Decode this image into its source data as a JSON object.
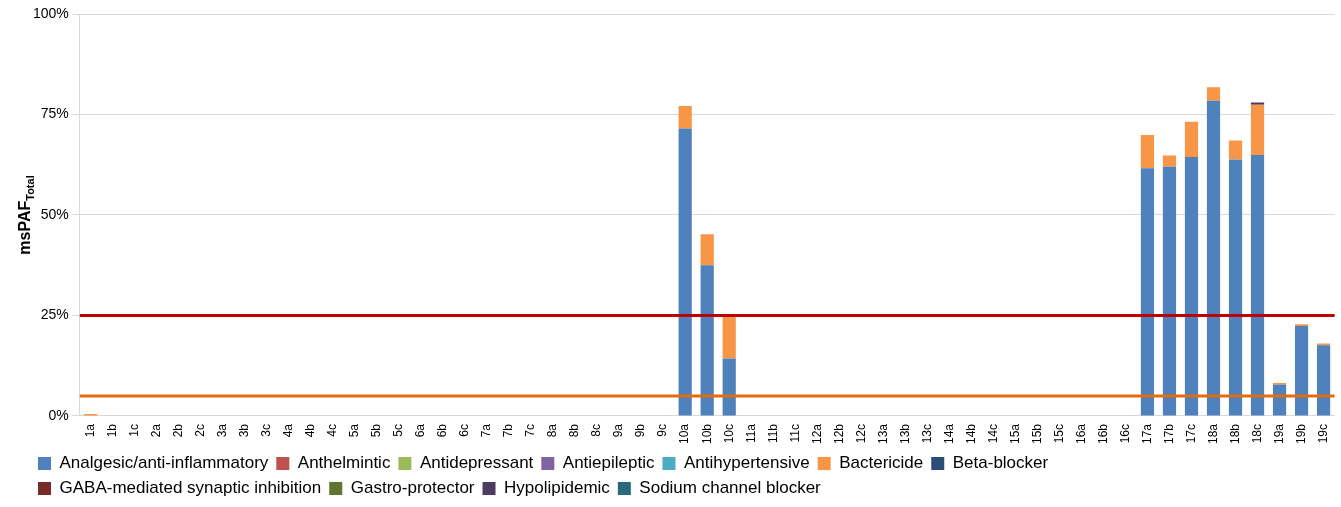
{
  "chart_data": {
    "type": "bar",
    "stacked": true,
    "ylabel": "msPAF$_{Total}$",
    "categories": [
      "1a",
      "1b",
      "1c",
      "2a",
      "2b",
      "2c",
      "3a",
      "3b",
      "3c",
      "4a",
      "4b",
      "4c",
      "5a",
      "5b",
      "5c",
      "6a",
      "6b",
      "6c",
      "7a",
      "7b",
      "7c",
      "8a",
      "8b",
      "8c",
      "9a",
      "9b",
      "9c",
      "10a",
      "10b",
      "10c",
      "11a",
      "11b",
      "11c",
      "12a",
      "12b",
      "12c",
      "13a",
      "13b",
      "13c",
      "14a",
      "14b",
      "14c",
      "15a",
      "15b",
      "15c",
      "16a",
      "16b",
      "16c",
      "17a",
      "17b",
      "17c",
      "18a",
      "18b",
      "18c",
      "19a",
      "19b",
      "19c"
    ],
    "series": [
      {
        "name": "Analgesic/anti-inflammatory",
        "color": "#4f81bd",
        "values": [
          0,
          0,
          0,
          0,
          0,
          0,
          0,
          0,
          0,
          0,
          0,
          0,
          0,
          0,
          0,
          0,
          0,
          0,
          0,
          0,
          0,
          0,
          0,
          0,
          0,
          0,
          0,
          71.5,
          37.5,
          14.3,
          0,
          0,
          0,
          0,
          0,
          0,
          0,
          0,
          0,
          0,
          0,
          0,
          0,
          0,
          0,
          0,
          0,
          0,
          61.6,
          62.0,
          64.4,
          78.4,
          63.8,
          64.9,
          7.8,
          22.4,
          17.6
        ]
      },
      {
        "name": "Anthelmintic",
        "color": "#c0504d",
        "values": [
          0,
          0,
          0,
          0,
          0,
          0,
          0,
          0,
          0,
          0,
          0,
          0,
          0,
          0,
          0,
          0,
          0,
          0,
          0,
          0,
          0,
          0,
          0,
          0,
          0,
          0,
          0,
          0,
          0,
          0,
          0,
          0,
          0,
          0,
          0,
          0,
          0,
          0,
          0,
          0,
          0,
          0,
          0,
          0,
          0,
          0,
          0,
          0,
          0,
          0,
          0,
          0,
          0,
          0,
          0,
          0,
          0
        ]
      },
      {
        "name": "Antidepressant",
        "color": "#9bbb59",
        "values": [
          0,
          0,
          0,
          0,
          0,
          0,
          0,
          0,
          0,
          0,
          0,
          0,
          0,
          0,
          0,
          0,
          0,
          0,
          0,
          0,
          0,
          0,
          0,
          0,
          0,
          0,
          0,
          0,
          0,
          0,
          0,
          0,
          0,
          0,
          0,
          0,
          0,
          0,
          0,
          0,
          0,
          0,
          0,
          0,
          0,
          0,
          0,
          0,
          0,
          0,
          0,
          0,
          0,
          0,
          0,
          0,
          0
        ]
      },
      {
        "name": "Antiepileptic",
        "color": "#8064a2",
        "values": [
          0,
          0,
          0,
          0,
          0,
          0,
          0,
          0,
          0,
          0,
          0,
          0,
          0,
          0,
          0,
          0,
          0,
          0,
          0,
          0,
          0,
          0,
          0,
          0,
          0,
          0,
          0,
          0,
          0,
          0,
          0,
          0,
          0,
          0,
          0,
          0,
          0,
          0,
          0,
          0,
          0,
          0,
          0,
          0,
          0,
          0,
          0,
          0,
          0,
          0,
          0,
          0,
          0,
          0,
          0,
          0,
          0
        ]
      },
      {
        "name": "Antihypertensive",
        "color": "#4bacc6",
        "values": [
          0,
          0,
          0,
          0,
          0,
          0,
          0,
          0,
          0,
          0,
          0,
          0,
          0,
          0,
          0,
          0,
          0,
          0,
          0,
          0,
          0,
          0,
          0,
          0,
          0,
          0,
          0,
          0,
          0,
          0,
          0,
          0,
          0,
          0,
          0,
          0,
          0,
          0,
          0,
          0,
          0,
          0,
          0,
          0,
          0,
          0,
          0,
          0,
          0,
          0,
          0,
          0,
          0,
          0,
          0,
          0,
          0
        ]
      },
      {
        "name": "Bactericide",
        "color": "#f79646",
        "values": [
          0.5,
          0,
          0,
          0,
          0,
          0,
          0,
          0,
          0,
          0,
          0,
          0,
          0,
          0,
          0,
          0,
          0,
          0,
          0,
          0,
          0,
          0,
          0,
          0,
          0,
          0,
          0,
          5.6,
          7.7,
          10.3,
          0,
          0,
          0,
          0,
          0,
          0,
          0,
          0,
          0,
          0,
          0,
          0,
          0,
          0,
          0,
          0,
          0,
          0,
          8.3,
          2.8,
          8.8,
          3.4,
          4.7,
          12.5,
          0.4,
          0.4,
          0.4
        ]
      },
      {
        "name": "Beta-blocker",
        "color": "#2c4d75",
        "values": [
          0,
          0,
          0,
          0,
          0,
          0,
          0,
          0,
          0,
          0,
          0,
          0,
          0,
          0,
          0,
          0,
          0,
          0,
          0,
          0,
          0,
          0,
          0,
          0,
          0,
          0,
          0,
          0,
          0,
          0,
          0,
          0,
          0,
          0,
          0,
          0,
          0,
          0,
          0,
          0,
          0,
          0,
          0,
          0,
          0,
          0,
          0,
          0,
          0,
          0,
          0,
          0,
          0,
          0,
          0,
          0,
          0
        ]
      },
      {
        "name": "GABA-mediated synaptic inhibition",
        "color": "#772c2a",
        "values": [
          0,
          0,
          0,
          0,
          0,
          0,
          0,
          0,
          0,
          0,
          0,
          0,
          0,
          0,
          0,
          0,
          0,
          0,
          0,
          0,
          0,
          0,
          0,
          0,
          0,
          0,
          0,
          0,
          0,
          0,
          0,
          0,
          0,
          0,
          0,
          0,
          0,
          0,
          0,
          0,
          0,
          0,
          0,
          0,
          0,
          0,
          0,
          0,
          0,
          0,
          0,
          0,
          0,
          0,
          0,
          0,
          0
        ]
      },
      {
        "name": "Gastro-protector",
        "color": "#5f7530",
        "values": [
          0,
          0,
          0,
          0,
          0,
          0,
          0,
          0,
          0,
          0,
          0,
          0,
          0,
          0,
          0,
          0,
          0,
          0,
          0,
          0,
          0,
          0,
          0,
          0,
          0,
          0,
          0,
          0,
          0,
          0,
          0,
          0,
          0,
          0,
          0,
          0,
          0,
          0,
          0,
          0,
          0,
          0,
          0,
          0,
          0,
          0,
          0,
          0,
          0,
          0,
          0,
          0,
          0,
          0,
          0,
          0,
          0
        ]
      },
      {
        "name": "Hypolipidemic",
        "color": "#4d3b62",
        "values": [
          0,
          0,
          0,
          0,
          0,
          0,
          0,
          0,
          0,
          0,
          0,
          0,
          0,
          0,
          0,
          0,
          0,
          0,
          0,
          0,
          0,
          0,
          0,
          0,
          0,
          0,
          0,
          0,
          0,
          0,
          0,
          0,
          0,
          0,
          0,
          0,
          0,
          0,
          0,
          0,
          0,
          0,
          0,
          0,
          0,
          0,
          0,
          0,
          0,
          0,
          0,
          0,
          0,
          0.6,
          0,
          0,
          0
        ]
      },
      {
        "name": "Sodium channel blocker",
        "color": "#276a7c",
        "values": [
          0,
          0,
          0,
          0,
          0,
          0,
          0,
          0,
          0,
          0,
          0,
          0,
          0,
          0,
          0,
          0,
          0,
          0,
          0,
          0,
          0,
          0,
          0,
          0,
          0,
          0,
          0,
          0,
          0,
          0,
          0,
          0,
          0,
          0,
          0,
          0,
          0,
          0,
          0,
          0,
          0,
          0,
          0,
          0,
          0,
          0,
          0,
          0,
          0,
          0,
          0,
          0,
          0,
          0,
          0,
          0,
          0
        ]
      }
    ],
    "ylim": [
      0,
      100
    ],
    "yticks": [
      {
        "value": 0,
        "label": "0%"
      },
      {
        "value": 25,
        "label": "25%"
      },
      {
        "value": 50,
        "label": "50%"
      },
      {
        "value": 75,
        "label": "75%"
      },
      {
        "value": 100,
        "label": "100%"
      }
    ],
    "ref_lines": [
      {
        "axis": "y",
        "value": 25,
        "color": "#c00000"
      },
      {
        "axis": "y",
        "value": 5,
        "color": "#e46c0a"
      }
    ],
    "grid": "y",
    "legend": "bottom"
  }
}
